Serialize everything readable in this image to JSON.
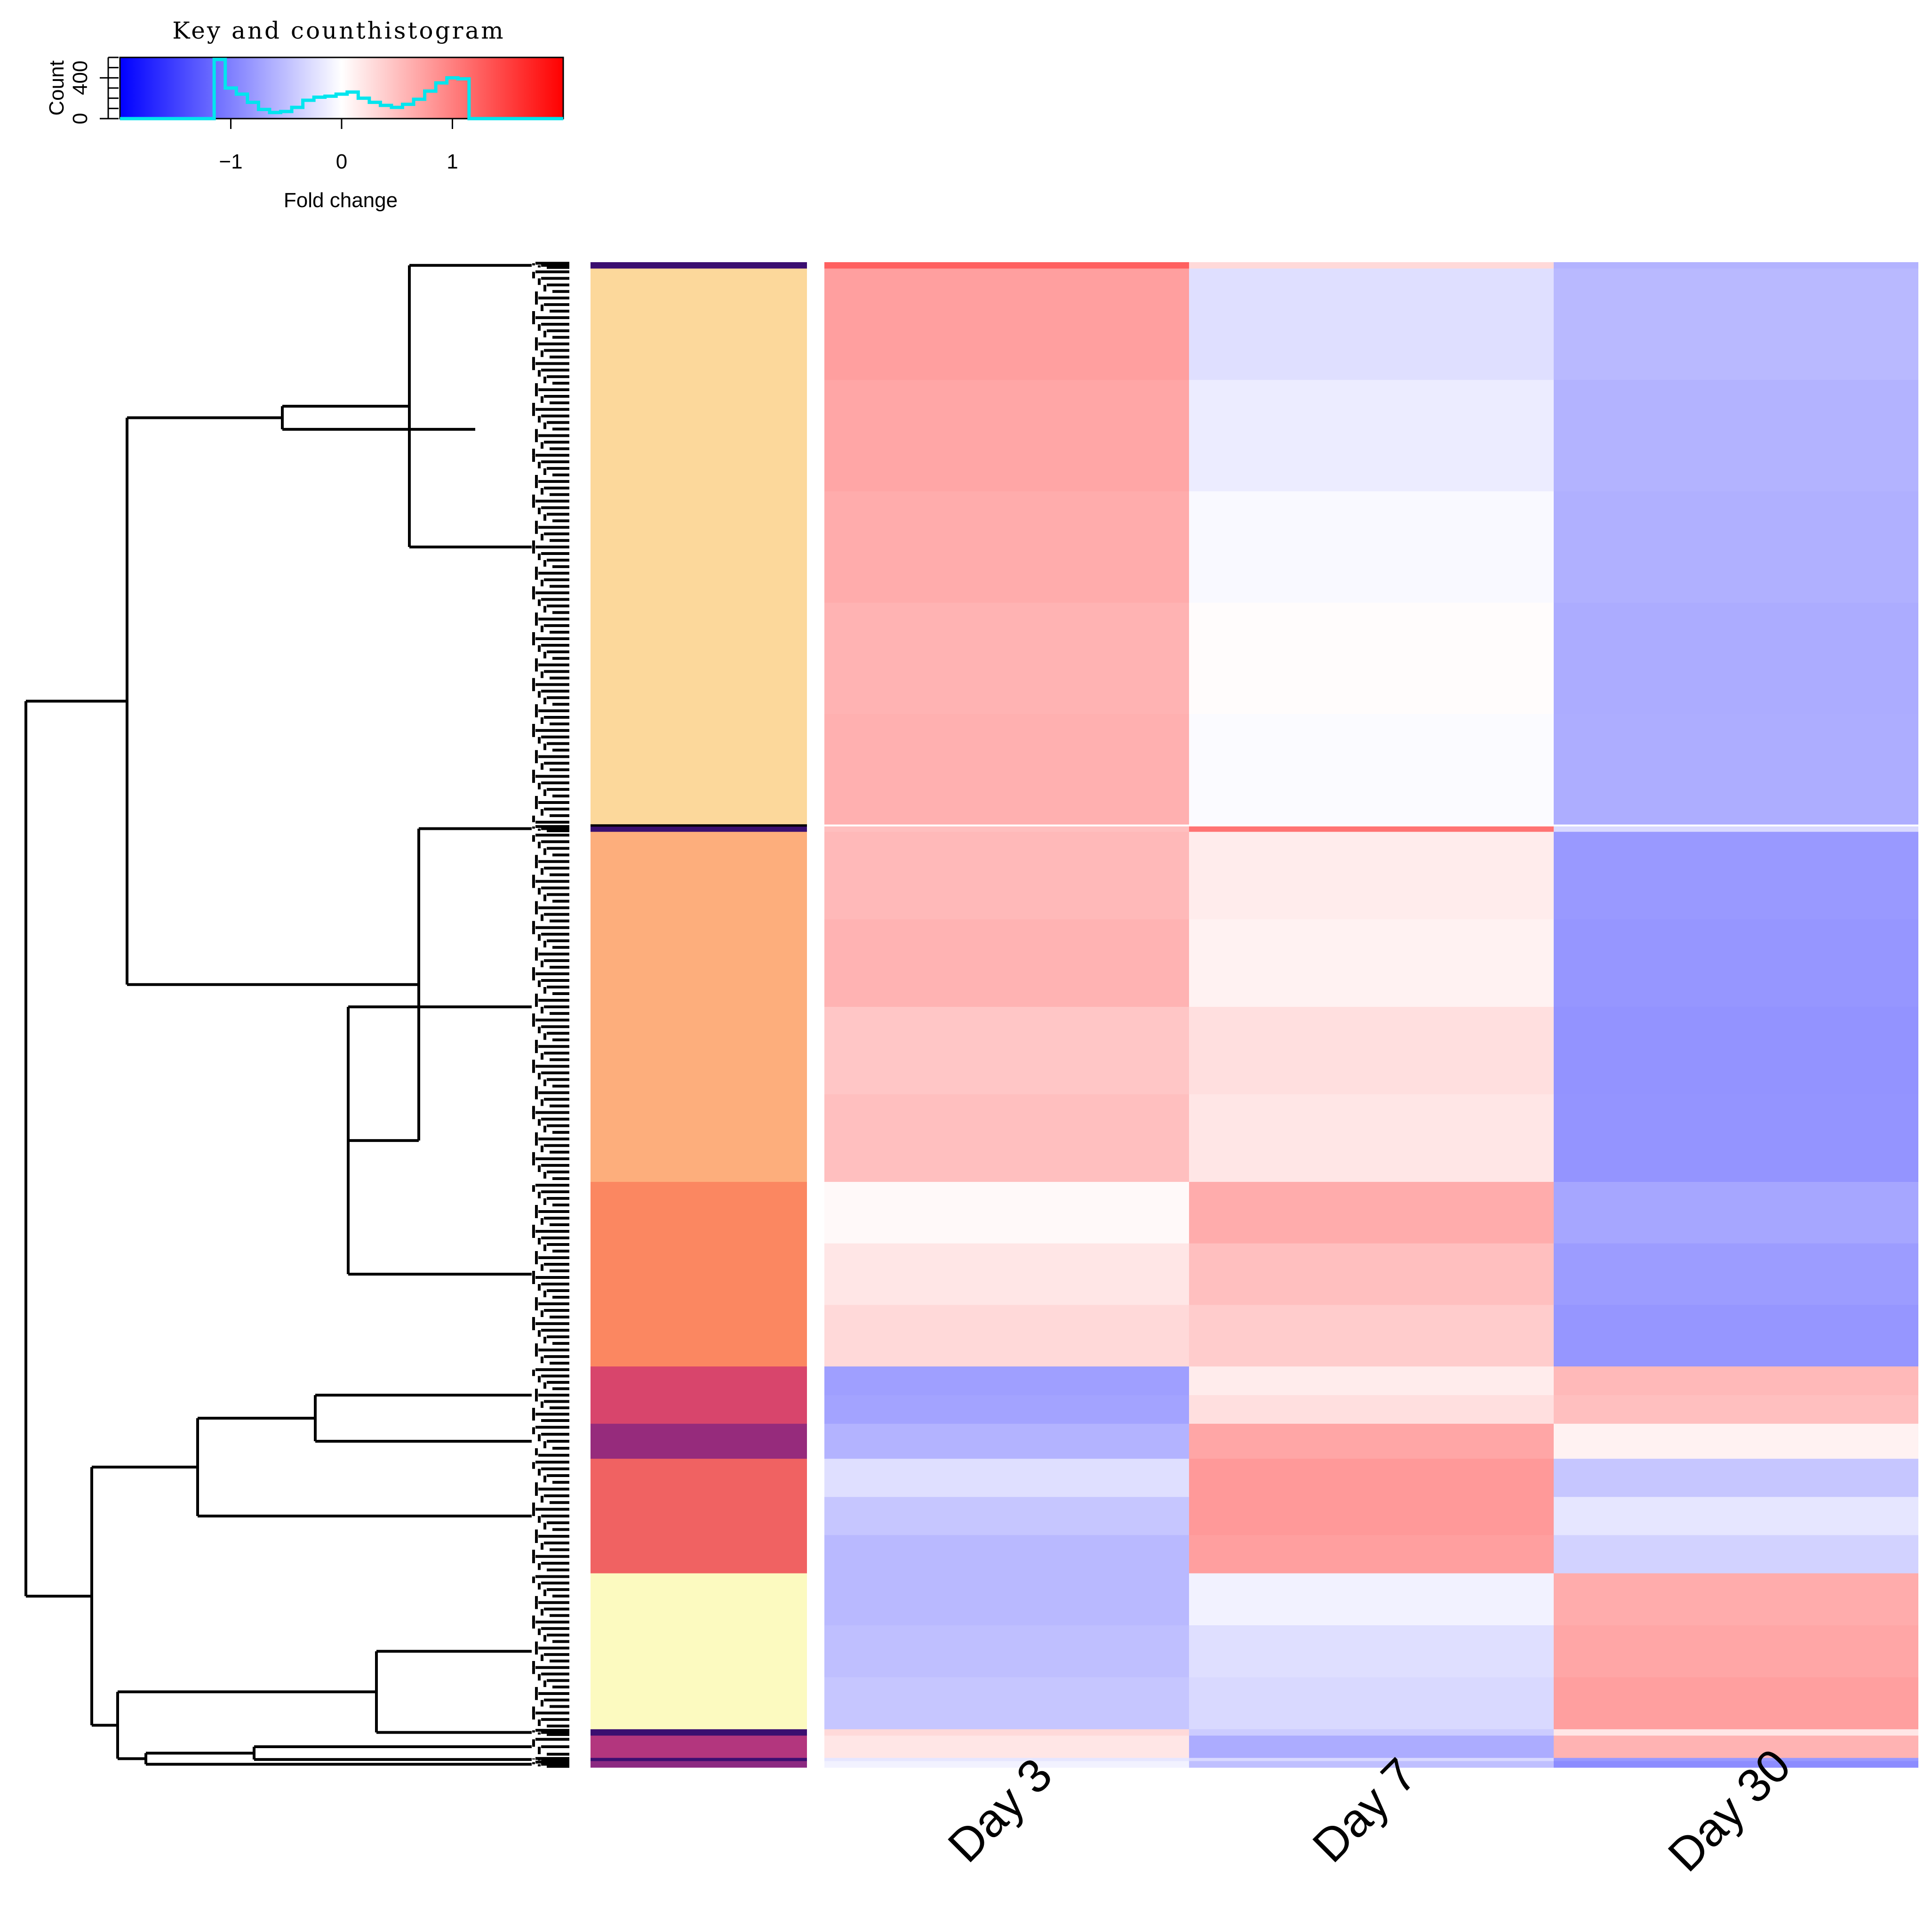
{
  "chart_data": {
    "type": "heatmap",
    "title": "",
    "columns": [
      "Day 3",
      "Day 7",
      "Day 30"
    ],
    "color_key": {
      "title": "Key and counthistogram",
      "xlabel": "Fold change",
      "ylabel": "Count",
      "x_range": [
        -2,
        2
      ],
      "x_ticks": [
        -1,
        0,
        1
      ],
      "y_ticks": [
        0,
        400
      ],
      "y_max": 600,
      "low_color": "#0000ff",
      "mid_color": "#ffffff",
      "high_color": "#ff0000",
      "histogram_color": "#00e5ee",
      "histogram": {
        "bin_edges": [
          -1.15,
          -1.05,
          -0.95,
          -0.85,
          -0.75,
          -0.65,
          -0.55,
          -0.45,
          -0.35,
          -0.25,
          -0.15,
          -0.05,
          0.05,
          0.15,
          0.25,
          0.35,
          0.45,
          0.55,
          0.65,
          0.75,
          0.85,
          0.95,
          1.05,
          1.15
        ],
        "counts": [
          580,
          300,
          240,
          160,
          90,
          60,
          70,
          110,
          180,
          210,
          220,
          240,
          260,
          200,
          160,
          130,
          110,
          140,
          190,
          270,
          350,
          400,
          390
        ]
      }
    },
    "clusters": [
      {
        "color": "#3b0f70",
        "rows": 2,
        "values": [
          [
            1.25,
            0.3,
            -0.6
          ]
        ]
      },
      {
        "color": "#fcd89b",
        "rows": 175,
        "values": [
          [
            0.75,
            -0.25,
            -0.55
          ],
          [
            0.7,
            -0.15,
            -0.6
          ],
          [
            0.65,
            -0.05,
            -0.62
          ],
          [
            0.6,
            0.02,
            -0.65
          ],
          [
            0.62,
            -0.03,
            -0.64
          ]
        ]
      },
      {
        "color": "#3b0f70",
        "rows": 2,
        "values": [
          [
            0.5,
            1.1,
            -0.3
          ]
        ]
      },
      {
        "color": "#fdae7c",
        "rows": 110,
        "values": [
          [
            0.55,
            0.15,
            -0.8
          ],
          [
            0.6,
            0.1,
            -0.82
          ],
          [
            0.45,
            0.25,
            -0.85
          ],
          [
            0.5,
            0.2,
            -0.84
          ]
        ]
      },
      {
        "color": "#fb8761",
        "rows": 58,
        "values": [
          [
            0.05,
            0.65,
            -0.7
          ],
          [
            0.2,
            0.5,
            -0.78
          ],
          [
            0.3,
            0.4,
            -0.82
          ]
        ]
      },
      {
        "color": "#d8456c",
        "rows": 18,
        "values": [
          [
            -0.75,
            0.15,
            0.55
          ],
          [
            -0.72,
            0.25,
            0.5
          ]
        ]
      },
      {
        "color": "#962b7c",
        "rows": 11,
        "values": [
          [
            -0.6,
            0.7,
            0.1
          ]
        ]
      },
      {
        "color": "#f06262",
        "rows": 36,
        "values": [
          [
            -0.25,
            0.8,
            -0.45
          ],
          [
            -0.45,
            0.8,
            -0.2
          ],
          [
            -0.55,
            0.75,
            -0.35
          ]
        ]
      },
      {
        "color": "#fcfac0",
        "rows": 49,
        "values": [
          [
            -0.55,
            -0.1,
            0.65
          ],
          [
            -0.5,
            -0.25,
            0.7
          ],
          [
            -0.45,
            -0.3,
            0.75
          ]
        ]
      },
      {
        "color": "#3b0f70",
        "rows": 2,
        "values": [
          [
            0.3,
            -0.4,
            0.2
          ]
        ]
      },
      {
        "color": "#b3367e",
        "rows": 7,
        "values": [
          [
            0.2,
            -0.65,
            0.6
          ]
        ]
      },
      {
        "color": "#3b0f70",
        "rows": 1,
        "values": [
          [
            -0.2,
            -0.3,
            -0.8
          ]
        ]
      },
      {
        "color": "#8c2981",
        "rows": 2,
        "values": [
          [
            -0.1,
            -0.5,
            -0.9
          ]
        ]
      }
    ],
    "dendrogram": {
      "orientation": "left",
      "leaves": 473
    }
  }
}
